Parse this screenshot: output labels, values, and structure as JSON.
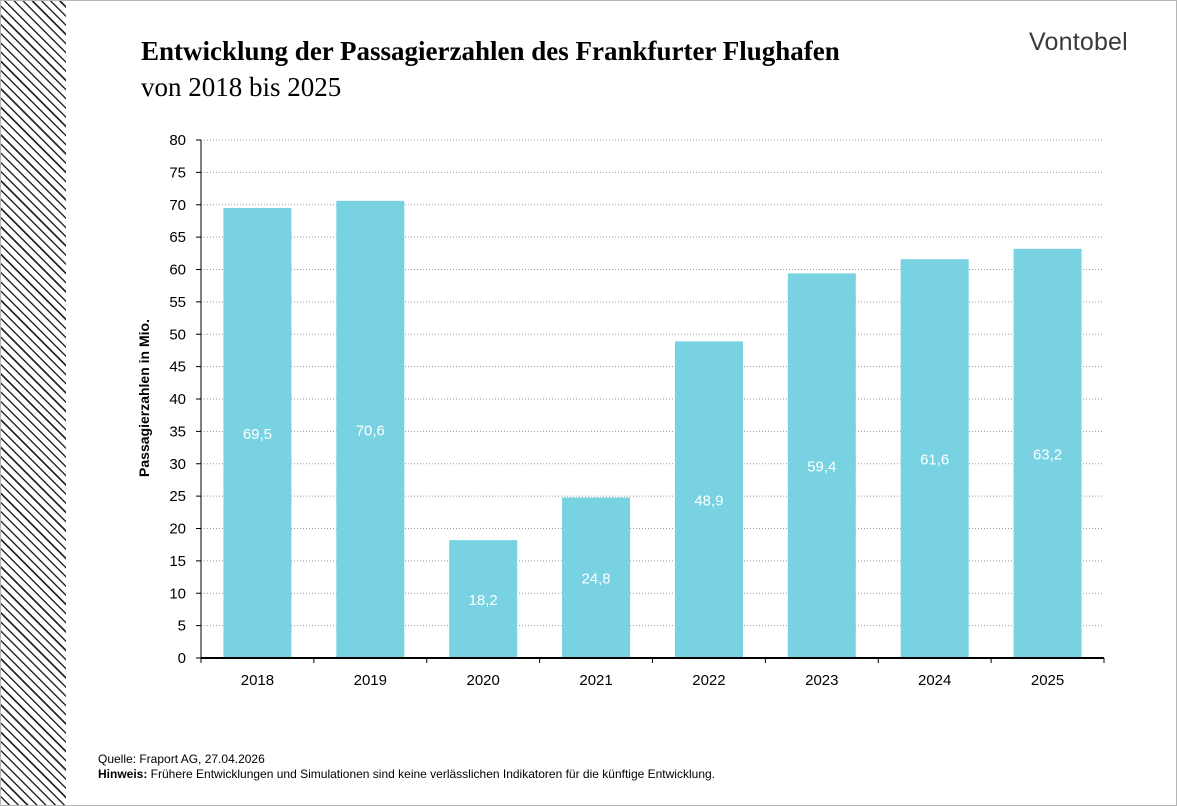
{
  "header": {
    "title": "Entwicklung der Passagierzahlen des Frankfurter Flughafen",
    "subtitle": "von 2018 bis 2025",
    "logo_text": "Vontobel"
  },
  "footer": {
    "source": "Quelle: Fraport AG, 27.04.2026",
    "note_label": "Hinweis:",
    "note_text": " Frühere Entwicklungen und Simulationen sind keine verlässlichen Indikatoren für die künftige Entwicklung."
  },
  "colors": {
    "bar": "#78d2e2",
    "grid": "#9a9a9a",
    "axis": "#000000",
    "bar_label": "#ffffff"
  },
  "chart_data": {
    "type": "bar",
    "categories": [
      "2018",
      "2019",
      "2020",
      "2021",
      "2022",
      "2023",
      "2024",
      "2025"
    ],
    "values": [
      69.5,
      70.6,
      18.2,
      24.8,
      48.9,
      59.4,
      61.6,
      63.2
    ],
    "data_labels": [
      "69,5",
      "70,6",
      "18,2",
      "24,8",
      "48,9",
      "59,4",
      "61,6",
      "63,2"
    ],
    "title": "Entwicklung der Passagierzahlen des Frankfurter Flughafen",
    "subtitle": "von 2018 bis 2025",
    "xlabel": "",
    "ylabel": "Passagierzahlen in Mio.",
    "ylim": [
      0,
      80
    ],
    "yticks": [
      0,
      5,
      10,
      15,
      20,
      25,
      30,
      35,
      40,
      45,
      50,
      55,
      60,
      65,
      70,
      75,
      80
    ],
    "grid": true,
    "legend": "none"
  }
}
